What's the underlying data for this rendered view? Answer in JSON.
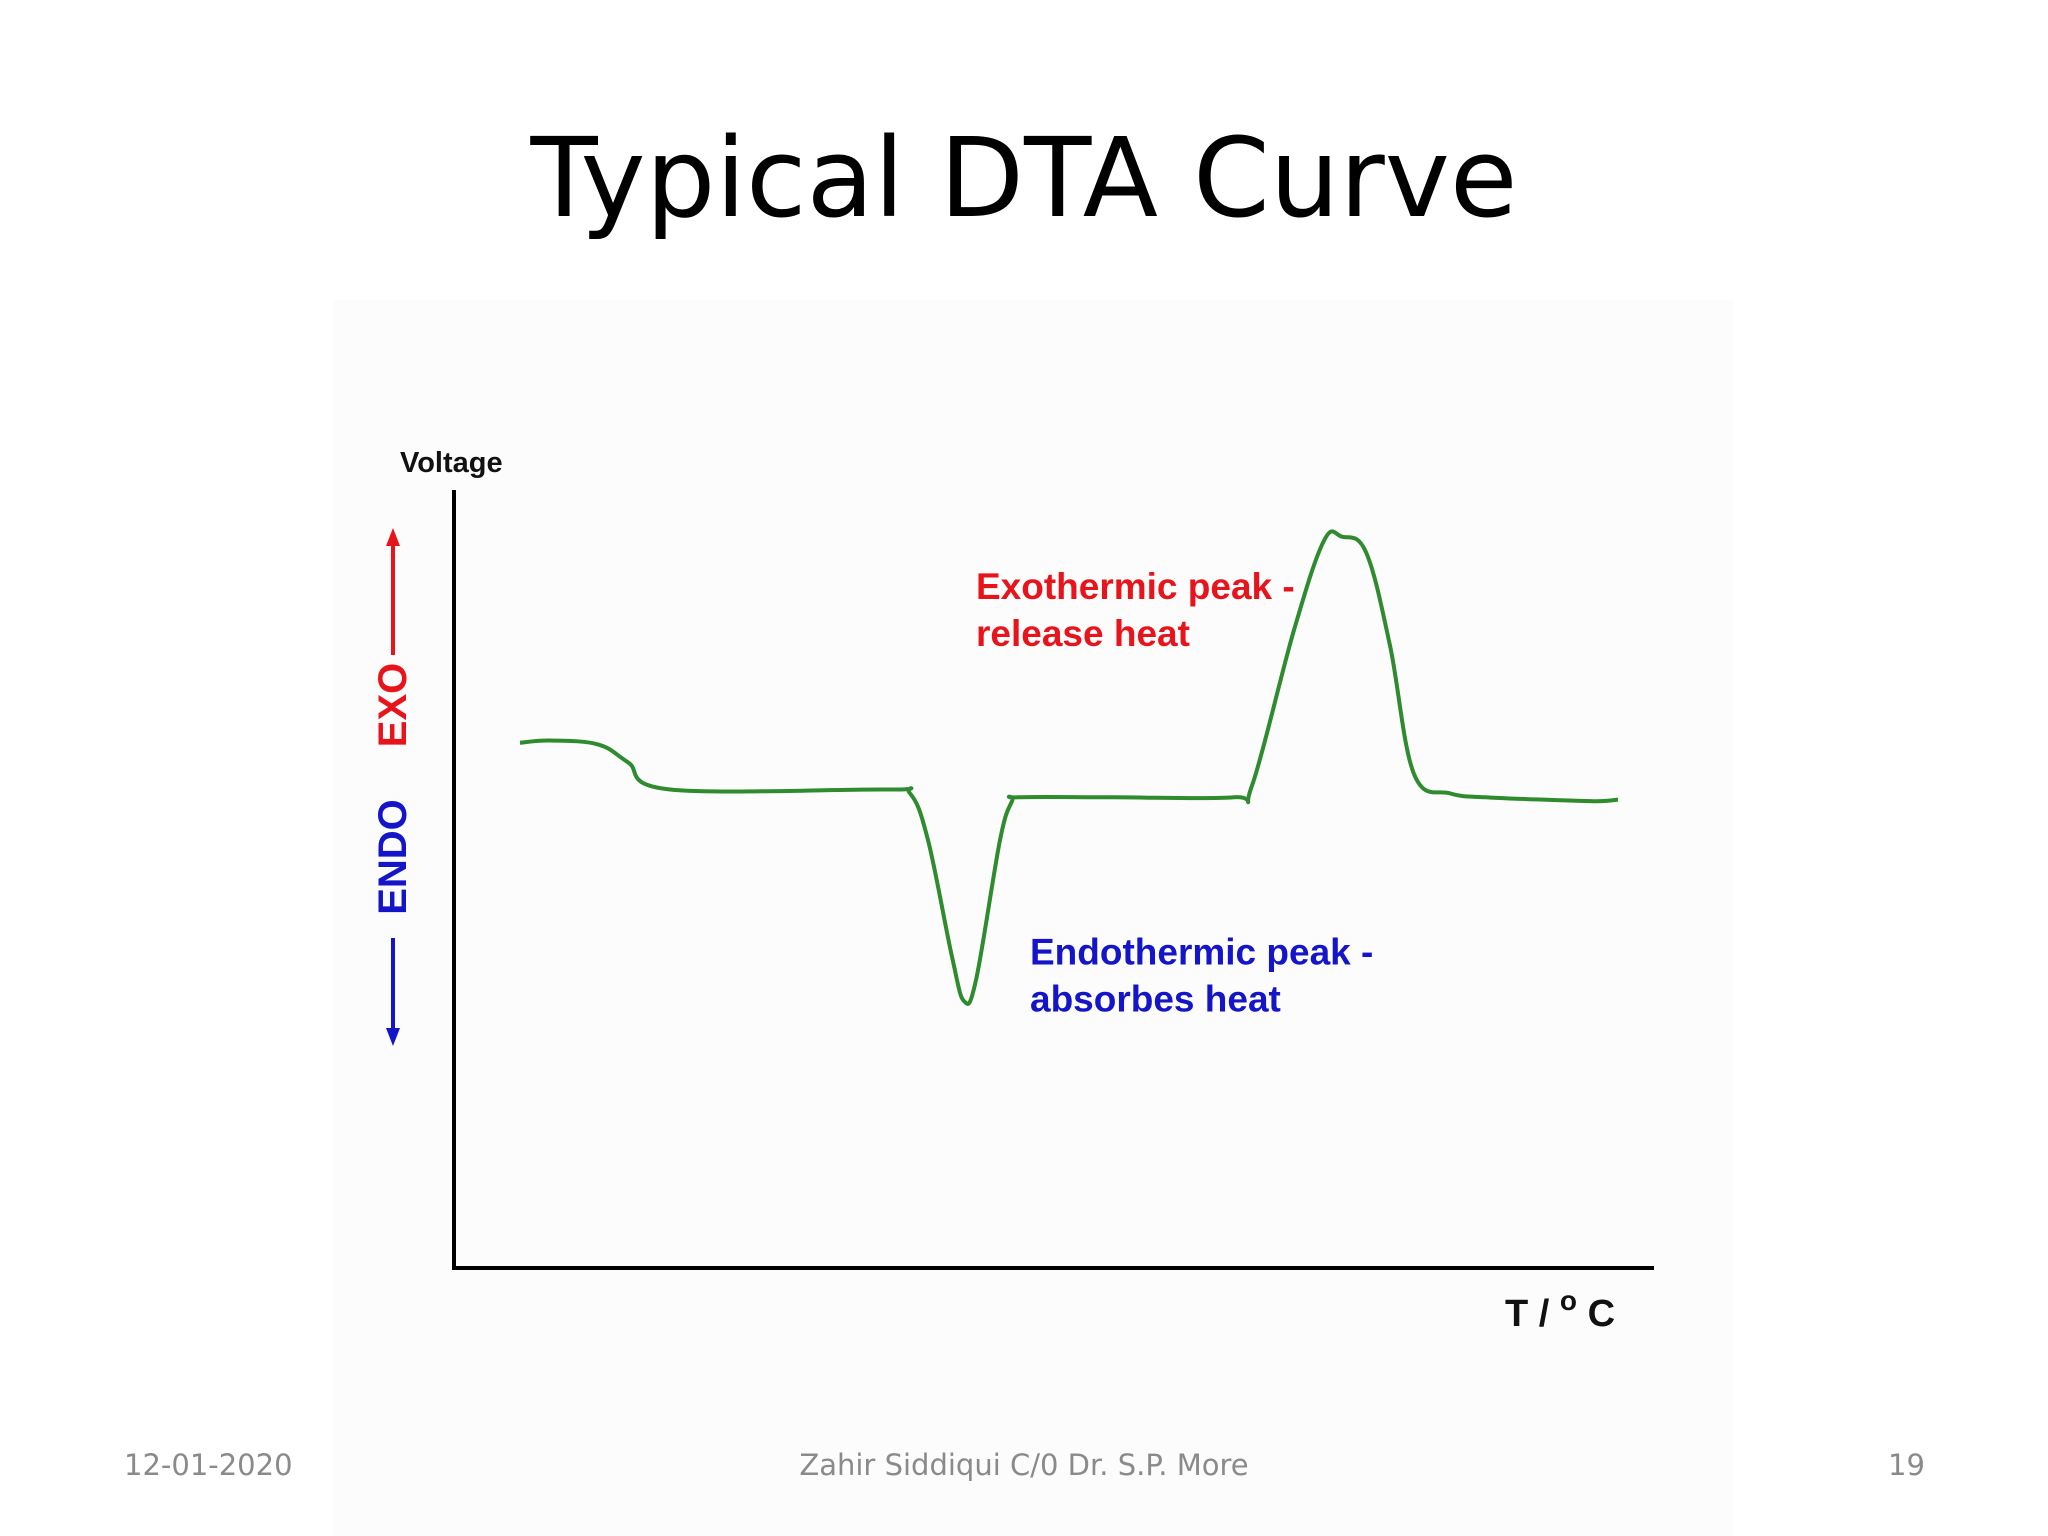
{
  "slide": {
    "title": "Typical DTA Curve",
    "footer_date": "12-01-2020",
    "footer_center": "Zahir Siddiqui C/0 Dr. S.P. More",
    "page_number": "19"
  },
  "chart_data": {
    "type": "line",
    "title": "",
    "xlabel": "T /",
    "xlabel_superscript": "o",
    "xlabel_unit": "C",
    "ylabel": "Voltage",
    "direction_labels": {
      "up": "EXO",
      "up_color": "#e8141c",
      "down": "ENDO",
      "down_color": "#1414c8"
    },
    "xlim": [
      0,
      100
    ],
    "ylim": [
      0,
      100
    ],
    "grid": false,
    "series": [
      {
        "color": "#2e8b2e",
        "x": [
          5.5,
          8,
          12,
          14.5,
          18,
          36,
          38,
          39.5,
          41.5,
          42.5,
          43.5,
          45.5,
          46.5,
          47,
          55,
          65,
          66.5,
          70,
          72.5,
          74,
          76,
          78,
          80,
          83,
          86,
          89,
          95,
          97
        ],
        "y": [
          67.5,
          67.8,
          67.3,
          65,
          61.5,
          61.5,
          61,
          55,
          40,
          34.3,
          37,
          55,
          60,
          60.5,
          60.5,
          60.5,
          62,
          82,
          93.5,
          94,
          92,
          80,
          63.5,
          61,
          60.5,
          60.3,
          60,
          60.2
        ]
      }
    ],
    "annotations": [
      {
        "lines": [
          "Exothermic peak -",
          "release heat"
        ],
        "color": "#e8141c",
        "x": 43.5,
        "y": 86
      },
      {
        "lines": [
          "Endothermic peak -",
          "absorbes heat"
        ],
        "color": "#1414c8",
        "x": 48,
        "y": 39
      }
    ]
  }
}
